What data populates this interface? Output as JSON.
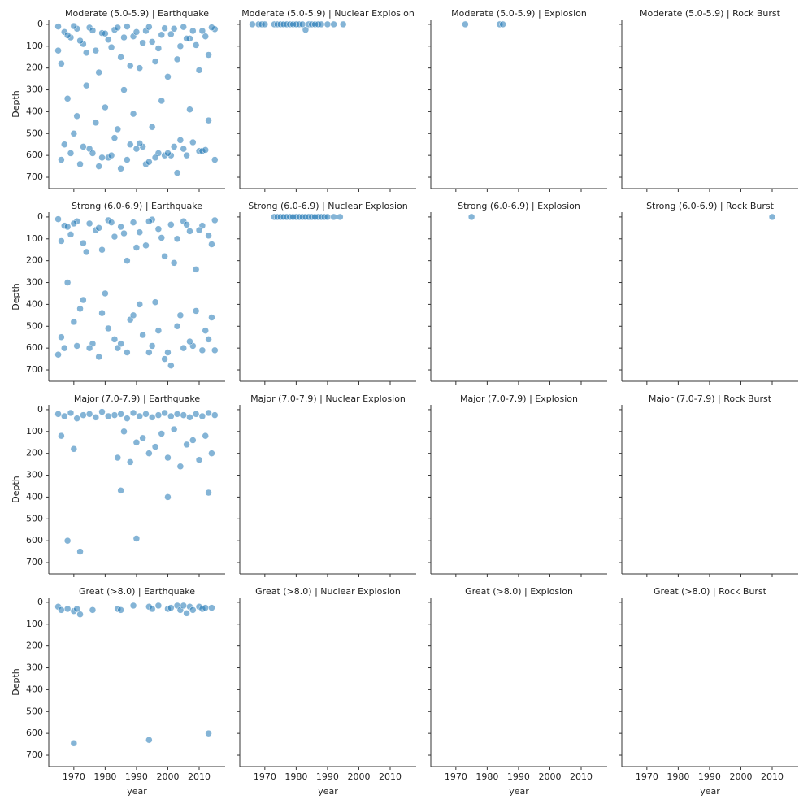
{
  "chart_data": [
    {
      "type": "scatter",
      "title": "Moderate (5.0-5.9) | Earthquake",
      "ylabel": "Depth",
      "color": "#1f77b4",
      "xlim": [
        1962,
        2018.3
      ],
      "ylim": [
        752,
        -22
      ],
      "xticks": [
        1970,
        1980,
        1990,
        2000,
        2010
      ],
      "yticks": [
        0,
        100,
        200,
        300,
        400,
        500,
        600,
        700
      ],
      "x": [
        1965,
        1967,
        1969,
        1971,
        1973,
        1975,
        1977,
        1979,
        1981,
        1983,
        1985,
        1987,
        1989,
        1991,
        1993,
        1995,
        1997,
        1999,
        2001,
        2003,
        2005,
        2007,
        2009,
        2011,
        2013,
        2015,
        1966,
        1968,
        1970,
        1972,
        1974,
        1976,
        1978,
        1980,
        1982,
        1984,
        1986,
        1988,
        1990,
        1992,
        1994,
        1996,
        1998,
        2000,
        2002,
        2004,
        2006,
        2008,
        2010,
        2012,
        2014,
        1965,
        1968,
        1971,
        1974,
        1977,
        1980,
        1983,
        1986,
        1989,
        1992,
        1995,
        1998,
        2001,
        2004,
        2007,
        2010,
        2013,
        1966,
        1970,
        1975,
        1979,
        1984,
        1988,
        1993,
        1997,
        2002,
        2006,
        2011,
        2015,
        1967,
        1972,
        1976,
        1981,
        1985,
        1990,
        1994,
        1999,
        2003,
        2008,
        2012,
        1969,
        1973,
        1978,
        1982,
        1987,
        1991,
        1996,
        2000,
        2005
      ],
      "values": [
        10,
        35,
        60,
        20,
        90,
        15,
        120,
        40,
        70,
        25,
        150,
        10,
        55,
        200,
        30,
        80,
        110,
        18,
        45,
        160,
        12,
        65,
        95,
        30,
        140,
        22,
        180,
        50,
        8,
        75,
        130,
        28,
        220,
        42,
        105,
        15,
        60,
        190,
        35,
        85,
        12,
        170,
        48,
        240,
        20,
        100,
        65,
        30,
        210,
        55,
        14,
        120,
        340,
        420,
        280,
        450,
        380,
        520,
        300,
        410,
        560,
        470,
        350,
        600,
        530,
        390,
        580,
        440,
        620,
        500,
        570,
        610,
        480,
        550,
        640,
        590,
        560,
        600,
        580,
        620,
        550,
        640,
        590,
        610,
        660,
        570,
        630,
        600,
        680,
        540,
        575,
        590,
        560,
        650,
        600,
        620,
        545,
        610,
        590,
        570
      ]
    },
    {
      "type": "scatter",
      "title": "Moderate (5.0-5.9) | Nuclear Explosion",
      "color": "#1f77b4",
      "xlim": [
        1962,
        2018.3
      ],
      "ylim": [
        752,
        -22
      ],
      "xticks": [
        1970,
        1980,
        1990,
        2000,
        2010
      ],
      "yticks": [
        0,
        100,
        200,
        300,
        400,
        500,
        600,
        700
      ],
      "x": [
        1966,
        1968,
        1969,
        1970,
        1973,
        1974,
        1975,
        1976,
        1977,
        1978,
        1979,
        1980,
        1981,
        1982,
        1983,
        1984,
        1985,
        1986,
        1987,
        1988,
        1990,
        1992,
        1995
      ],
      "values": [
        0,
        0,
        0,
        0,
        0,
        0,
        0,
        0,
        0,
        0,
        0,
        0,
        0,
        0,
        25,
        0,
        0,
        0,
        0,
        0,
        0,
        0,
        0
      ]
    },
    {
      "type": "scatter",
      "title": "Moderate (5.0-5.9) | Explosion",
      "color": "#1f77b4",
      "xlim": [
        1962,
        2018.3
      ],
      "ylim": [
        752,
        -22
      ],
      "xticks": [
        1970,
        1980,
        1990,
        2000,
        2010
      ],
      "yticks": [
        0,
        100,
        200,
        300,
        400,
        500,
        600,
        700
      ],
      "x": [
        1973,
        1984,
        1985
      ],
      "values": [
        0,
        0,
        0
      ]
    },
    {
      "type": "scatter",
      "title": "Moderate (5.0-5.9) | Rock Burst",
      "color": "#1f77b4",
      "xlim": [
        1962,
        2018.3
      ],
      "ylim": [
        752,
        -22
      ],
      "xticks": [
        1970,
        1980,
        1990,
        2000,
        2010
      ],
      "yticks": [
        0,
        100,
        200,
        300,
        400,
        500,
        600,
        700
      ],
      "x": [],
      "values": []
    },
    {
      "type": "scatter",
      "title": "Strong (6.0-6.9) | Earthquake",
      "ylabel": "Depth",
      "color": "#1f77b4",
      "xlim": [
        1962,
        2018.3
      ],
      "ylim": [
        752,
        -22
      ],
      "xticks": [
        1970,
        1980,
        1990,
        2000,
        2010
      ],
      "yticks": [
        0,
        100,
        200,
        300,
        400,
        500,
        600,
        700
      ],
      "x": [
        1965,
        1967,
        1969,
        1971,
        1973,
        1975,
        1977,
        1979,
        1981,
        1983,
        1985,
        1987,
        1989,
        1991,
        1993,
        1995,
        1997,
        1999,
        2001,
        2003,
        2005,
        2007,
        2009,
        2011,
        2013,
        2015,
        1966,
        1970,
        1974,
        1978,
        1982,
        1986,
        1990,
        1994,
        1998,
        2002,
        2006,
        2010,
        2014,
        1968,
        1965,
        1968,
        1972,
        1976,
        1980,
        1984,
        1988,
        1992,
        1996,
        2000,
        2004,
        2008,
        2012,
        2015,
        1966,
        1970,
        1975,
        1979,
        1983,
        1987,
        1991,
        1995,
        1999,
        2003,
        2007,
        2011,
        2014,
        1967,
        1973,
        1978,
        1985,
        1989,
        1994,
        1997,
        2001,
        2005,
        2009,
        2013,
        1971,
        1981
      ],
      "values": [
        10,
        40,
        80,
        20,
        120,
        30,
        60,
        150,
        15,
        90,
        45,
        200,
        25,
        70,
        130,
        12,
        55,
        180,
        35,
        100,
        20,
        65,
        240,
        40,
        85,
        15,
        110,
        30,
        160,
        50,
        25,
        75,
        140,
        20,
        95,
        210,
        35,
        60,
        125,
        45,
        630,
        300,
        420,
        580,
        350,
        600,
        470,
        540,
        390,
        620,
        450,
        590,
        520,
        610,
        550,
        480,
        600,
        440,
        560,
        620,
        400,
        590,
        650,
        500,
        570,
        610,
        460,
        600,
        380,
        640,
        580,
        450,
        620,
        520,
        680,
        600,
        430,
        560,
        590,
        510
      ]
    },
    {
      "type": "scatter",
      "title": "Strong (6.0-6.9) | Nuclear Explosion",
      "color": "#1f77b4",
      "xlim": [
        1962,
        2018.3
      ],
      "ylim": [
        752,
        -22
      ],
      "xticks": [
        1970,
        1980,
        1990,
        2000,
        2010
      ],
      "yticks": [
        0,
        100,
        200,
        300,
        400,
        500,
        600,
        700
      ],
      "x": [
        1973,
        1974,
        1975,
        1976,
        1977,
        1978,
        1979,
        1980,
        1981,
        1982,
        1983,
        1984,
        1985,
        1986,
        1987,
        1988,
        1989,
        1990,
        1992,
        1994
      ],
      "values": [
        0,
        0,
        0,
        0,
        0,
        0,
        0,
        0,
        0,
        0,
        0,
        0,
        0,
        0,
        0,
        0,
        0,
        0,
        0,
        0
      ]
    },
    {
      "type": "scatter",
      "title": "Strong (6.0-6.9) | Explosion",
      "color": "#1f77b4",
      "xlim": [
        1962,
        2018.3
      ],
      "ylim": [
        752,
        -22
      ],
      "xticks": [
        1970,
        1980,
        1990,
        2000,
        2010
      ],
      "yticks": [
        0,
        100,
        200,
        300,
        400,
        500,
        600,
        700
      ],
      "x": [
        1975
      ],
      "values": [
        0
      ]
    },
    {
      "type": "scatter",
      "title": "Strong (6.0-6.9) | Rock Burst",
      "color": "#1f77b4",
      "xlim": [
        1962,
        2018.3
      ],
      "ylim": [
        752,
        -22
      ],
      "xticks": [
        1970,
        1980,
        1990,
        2000,
        2010
      ],
      "yticks": [
        0,
        100,
        200,
        300,
        400,
        500,
        600,
        700
      ],
      "x": [
        2010
      ],
      "values": [
        0
      ]
    },
    {
      "type": "scatter",
      "title": "Major (7.0-7.9) | Earthquake",
      "ylabel": "Depth",
      "color": "#1f77b4",
      "xlim": [
        1962,
        2018.3
      ],
      "ylim": [
        752,
        -22
      ],
      "xticks": [
        1970,
        1980,
        1990,
        2000,
        2010
      ],
      "yticks": [
        0,
        100,
        200,
        300,
        400,
        500,
        600,
        700
      ],
      "x": [
        1965,
        1967,
        1969,
        1971,
        1973,
        1975,
        1977,
        1979,
        1981,
        1983,
        1985,
        1987,
        1989,
        1991,
        1993,
        1995,
        1997,
        1999,
        2001,
        2003,
        2005,
        2007,
        2009,
        2011,
        2013,
        2015,
        1966,
        1970,
        1984,
        1986,
        1988,
        1990,
        1992,
        1994,
        1996,
        1998,
        2000,
        2002,
        2004,
        2006,
        2008,
        2010,
        2012,
        2014,
        1968,
        1972,
        1985,
        1990,
        2000,
        2013
      ],
      "values": [
        20,
        30,
        15,
        40,
        25,
        20,
        35,
        10,
        30,
        25,
        20,
        40,
        15,
        30,
        20,
        35,
        25,
        15,
        30,
        20,
        25,
        35,
        20,
        30,
        15,
        25,
        120,
        180,
        220,
        100,
        240,
        150,
        130,
        200,
        170,
        110,
        220,
        90,
        260,
        160,
        140,
        230,
        120,
        200,
        600,
        650,
        370,
        590,
        400,
        380
      ]
    },
    {
      "type": "scatter",
      "title": "Major (7.0-7.9) | Nuclear Explosion",
      "color": "#1f77b4",
      "xlim": [
        1962,
        2018.3
      ],
      "ylim": [
        752,
        -22
      ],
      "xticks": [
        1970,
        1980,
        1990,
        2000,
        2010
      ],
      "yticks": [
        0,
        100,
        200,
        300,
        400,
        500,
        600,
        700
      ],
      "x": [],
      "values": []
    },
    {
      "type": "scatter",
      "title": "Major (7.0-7.9) | Explosion",
      "color": "#1f77b4",
      "xlim": [
        1962,
        2018.3
      ],
      "ylim": [
        752,
        -22
      ],
      "xticks": [
        1970,
        1980,
        1990,
        2000,
        2010
      ],
      "yticks": [
        0,
        100,
        200,
        300,
        400,
        500,
        600,
        700
      ],
      "x": [],
      "values": []
    },
    {
      "type": "scatter",
      "title": "Major (7.0-7.9) | Rock Burst",
      "color": "#1f77b4",
      "xlim": [
        1962,
        2018.3
      ],
      "ylim": [
        752,
        -22
      ],
      "xticks": [
        1970,
        1980,
        1990,
        2000,
        2010
      ],
      "yticks": [
        0,
        100,
        200,
        300,
        400,
        500,
        600,
        700
      ],
      "x": [],
      "values": []
    },
    {
      "type": "scatter",
      "title": "Great (>8.0) | Earthquake",
      "ylabel": "Depth",
      "xlabel": "year",
      "color": "#1f77b4",
      "xlim": [
        1962,
        2018.3
      ],
      "ylim": [
        752,
        -22
      ],
      "xticks": [
        1970,
        1980,
        1990,
        2000,
        2010
      ],
      "yticks": [
        0,
        100,
        200,
        300,
        400,
        500,
        600,
        700
      ],
      "x": [
        1965,
        1966,
        1968,
        1970,
        1971,
        1972,
        1976,
        1984,
        1985,
        1989,
        1994,
        1995,
        1997,
        2000,
        2001,
        2003,
        2004,
        2005,
        2006,
        2007,
        2008,
        2010,
        2011,
        2012,
        2014,
        1970,
        1994,
        2013
      ],
      "values": [
        20,
        35,
        30,
        40,
        30,
        55,
        35,
        30,
        35,
        15,
        20,
        30,
        15,
        30,
        25,
        15,
        35,
        15,
        50,
        20,
        35,
        20,
        30,
        25,
        25,
        645,
        630,
        600
      ]
    },
    {
      "type": "scatter",
      "title": "Great (>8.0) | Nuclear Explosion",
      "xlabel": "year",
      "color": "#1f77b4",
      "xlim": [
        1962,
        2018.3
      ],
      "ylim": [
        752,
        -22
      ],
      "xticks": [
        1970,
        1980,
        1990,
        2000,
        2010
      ],
      "yticks": [
        0,
        100,
        200,
        300,
        400,
        500,
        600,
        700
      ],
      "x": [],
      "values": []
    },
    {
      "type": "scatter",
      "title": "Great (>8.0) | Explosion",
      "xlabel": "year",
      "color": "#1f77b4",
      "xlim": [
        1962,
        2018.3
      ],
      "ylim": [
        752,
        -22
      ],
      "xticks": [
        1970,
        1980,
        1990,
        2000,
        2010
      ],
      "yticks": [
        0,
        100,
        200,
        300,
        400,
        500,
        600,
        700
      ],
      "x": [],
      "values": []
    },
    {
      "type": "scatter",
      "title": "Great (>8.0) | Rock Burst",
      "xlabel": "year",
      "color": "#1f77b4",
      "xlim": [
        1962,
        2018.3
      ],
      "ylim": [
        752,
        -22
      ],
      "xticks": [
        1970,
        1980,
        1990,
        2000,
        2010
      ],
      "yticks": [
        0,
        100,
        200,
        300,
        400,
        500,
        600,
        700
      ],
      "x": [],
      "values": []
    }
  ]
}
